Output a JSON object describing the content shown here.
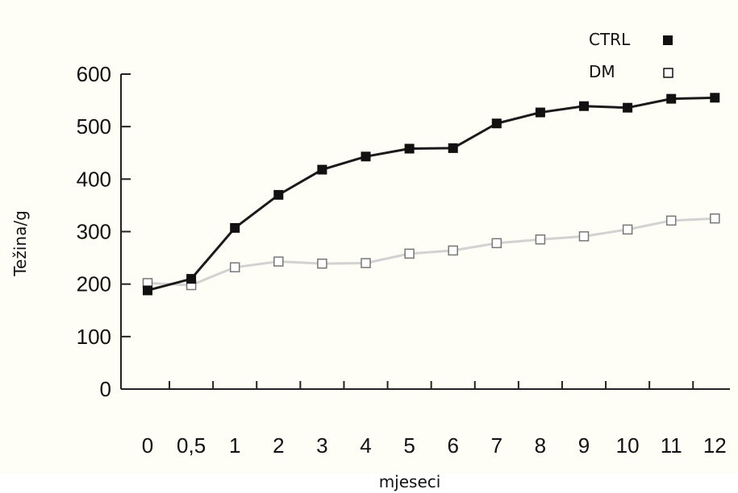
{
  "chart_data": {
    "type": "line",
    "xlabel": "mjeseci",
    "ylabel": "Težina/g",
    "categories": [
      "0",
      "0,5",
      "1",
      "2",
      "3",
      "4",
      "5",
      "6",
      "7",
      "8",
      "9",
      "10",
      "11",
      "12"
    ],
    "ylim": [
      0,
      600
    ],
    "yticks": [
      "0",
      "100",
      "200",
      "300",
      "400",
      "500",
      "600"
    ],
    "series": [
      {
        "name": "CTRL",
        "marker": "filled-square",
        "color": "#1a1a1a",
        "values": [
          188,
          210,
          307,
          370,
          418,
          443,
          458,
          459,
          506,
          527,
          539,
          536,
          553,
          555
        ]
      },
      {
        "name": "DM",
        "marker": "open-square",
        "color": "#d2d2d2",
        "values": [
          202,
          198,
          232,
          243,
          239,
          240,
          258,
          264,
          278,
          285,
          291,
          304,
          321,
          325
        ]
      }
    ],
    "legend_position": "top-right",
    "grid": false
  }
}
